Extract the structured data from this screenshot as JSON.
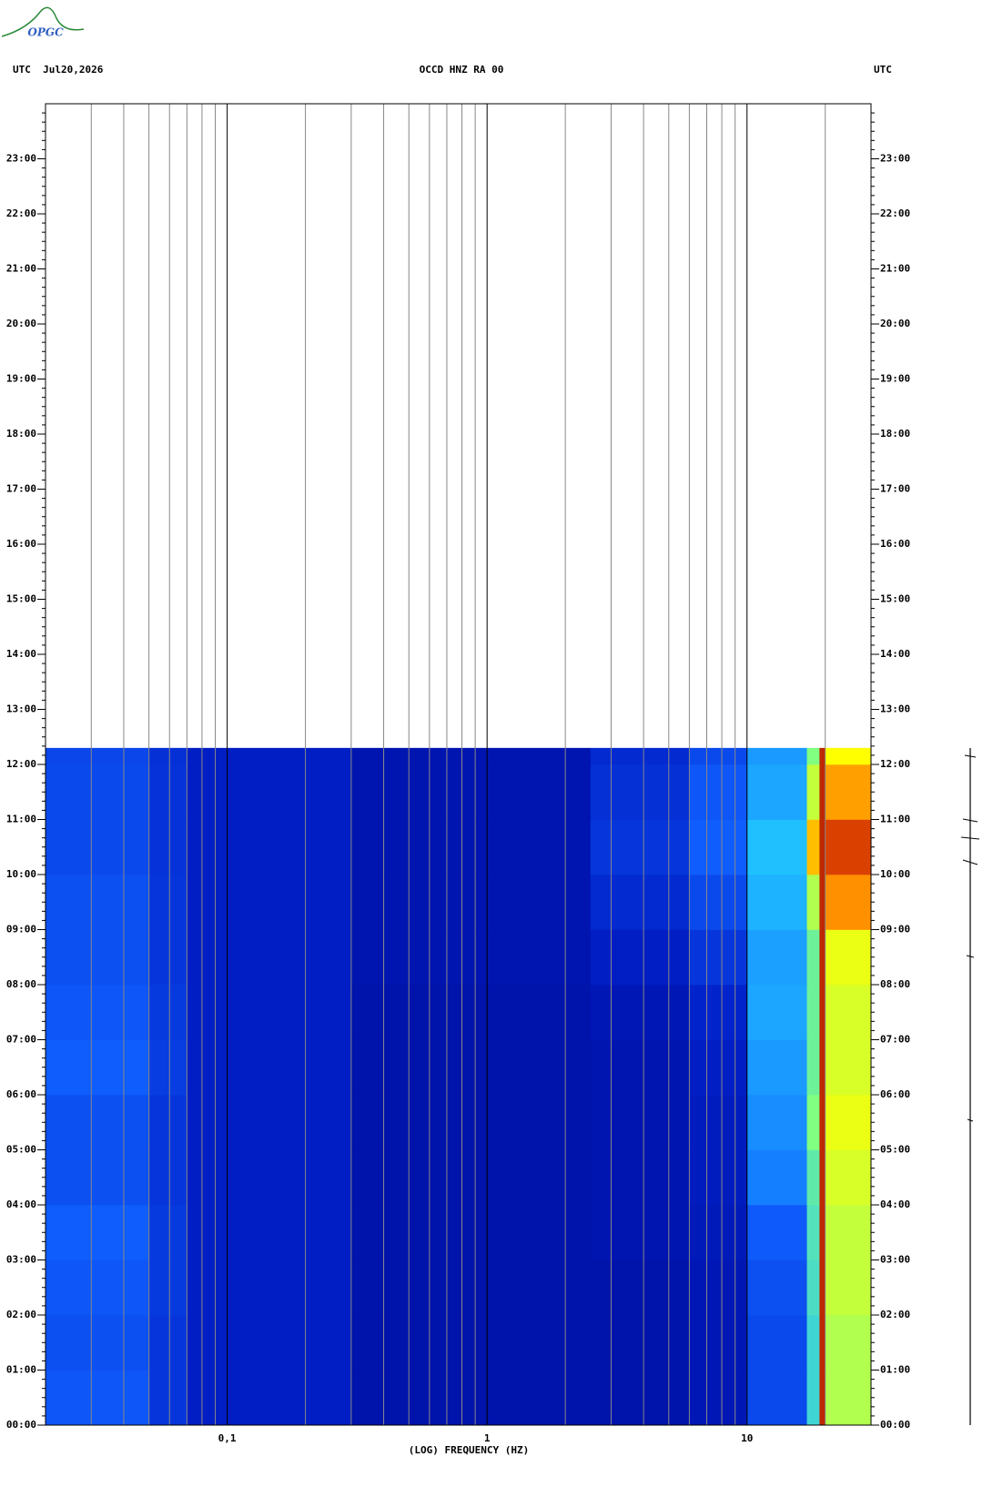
{
  "logo": "OPGC",
  "chart_data": {
    "type": "spectrogram",
    "title": "OCCD HNZ RA 00",
    "subtitle_left": "UTC  Jul20,2026",
    "subtitle_right": "UTC",
    "xlabel": "(LOG) FREQUENCY (HZ)",
    "xscale": "log",
    "xlim": [
      0.02,
      30
    ],
    "xticks": [
      {
        "value": 0.1,
        "label": "0,1"
      },
      1,
      10
    ],
    "xgrid_minor": [
      0.03,
      0.04,
      0.05,
      0.06,
      0.07,
      0.08,
      0.09,
      0.2,
      0.3,
      0.4,
      0.5,
      0.6,
      0.7,
      0.8,
      0.9,
      2,
      3,
      4,
      5,
      6,
      7,
      8,
      9,
      20
    ],
    "ylim": [
      0,
      24
    ],
    "yticks": [
      {
        "value": 0,
        "label": "00:00"
      },
      {
        "value": 1,
        "label": "01:00"
      },
      {
        "value": 2,
        "label": "02:00"
      },
      {
        "value": 3,
        "label": "03:00"
      },
      {
        "value": 4,
        "label": "04:00"
      },
      {
        "value": 5,
        "label": "05:00"
      },
      {
        "value": 6,
        "label": "06:00"
      },
      {
        "value": 7,
        "label": "07:00"
      },
      {
        "value": 8,
        "label": "08:00"
      },
      {
        "value": 9,
        "label": "09:00"
      },
      {
        "value": 10,
        "label": "10:00"
      },
      {
        "value": 11,
        "label": "11:00"
      },
      {
        "value": 12,
        "label": "12:00"
      },
      {
        "value": 13,
        "label": "13:00"
      },
      {
        "value": 14,
        "label": "14:00"
      },
      {
        "value": 15,
        "label": "15:00"
      },
      {
        "value": 16,
        "label": "16:00"
      },
      {
        "value": 17,
        "label": "17:00"
      },
      {
        "value": 18,
        "label": "18:00"
      },
      {
        "value": 19,
        "label": "19:00"
      },
      {
        "value": 20,
        "label": "20:00"
      },
      {
        "value": 21,
        "label": "21:00"
      },
      {
        "value": 22,
        "label": "22:00"
      },
      {
        "value": 23,
        "label": "23:00"
      }
    ],
    "xbins": [
      0.02,
      0.05,
      0.07,
      0.3,
      2.5,
      6,
      10,
      17,
      19,
      20,
      30
    ],
    "ybins": [
      0,
      1,
      2,
      3,
      4,
      5,
      6,
      7,
      8,
      9,
      10,
      11,
      12,
      12.3
    ],
    "z": [
      [
        32,
        22,
        14,
        9,
        9,
        11,
        28,
        55,
        95,
        70
      ],
      [
        30,
        22,
        14,
        9,
        9,
        11,
        28,
        55,
        95,
        70
      ],
      [
        32,
        23,
        14,
        9,
        9,
        11,
        30,
        57,
        95,
        72
      ],
      [
        34,
        23,
        14,
        9,
        10,
        12,
        33,
        58,
        95,
        72
      ],
      [
        30,
        22,
        14,
        9,
        10,
        13,
        40,
        60,
        95,
        74
      ],
      [
        30,
        22,
        14,
        9,
        10,
        13,
        42,
        65,
        95,
        76
      ],
      [
        34,
        24,
        14,
        9,
        10,
        14,
        44,
        62,
        95,
        74
      ],
      [
        32,
        23,
        14,
        9,
        11,
        16,
        46,
        62,
        95,
        74
      ],
      [
        30,
        22,
        14,
        10,
        14,
        22,
        45,
        62,
        95,
        76
      ],
      [
        30,
        22,
        14,
        10,
        18,
        28,
        48,
        70,
        95,
        85
      ],
      [
        28,
        21,
        14,
        10,
        22,
        34,
        50,
        82,
        95,
        92
      ],
      [
        28,
        21,
        14,
        10,
        20,
        32,
        46,
        72,
        95,
        84
      ],
      [
        27,
        20,
        14,
        10,
        18,
        28,
        44,
        65,
        95,
        78
      ]
    ],
    "zlim": [
      0,
      100
    ]
  }
}
